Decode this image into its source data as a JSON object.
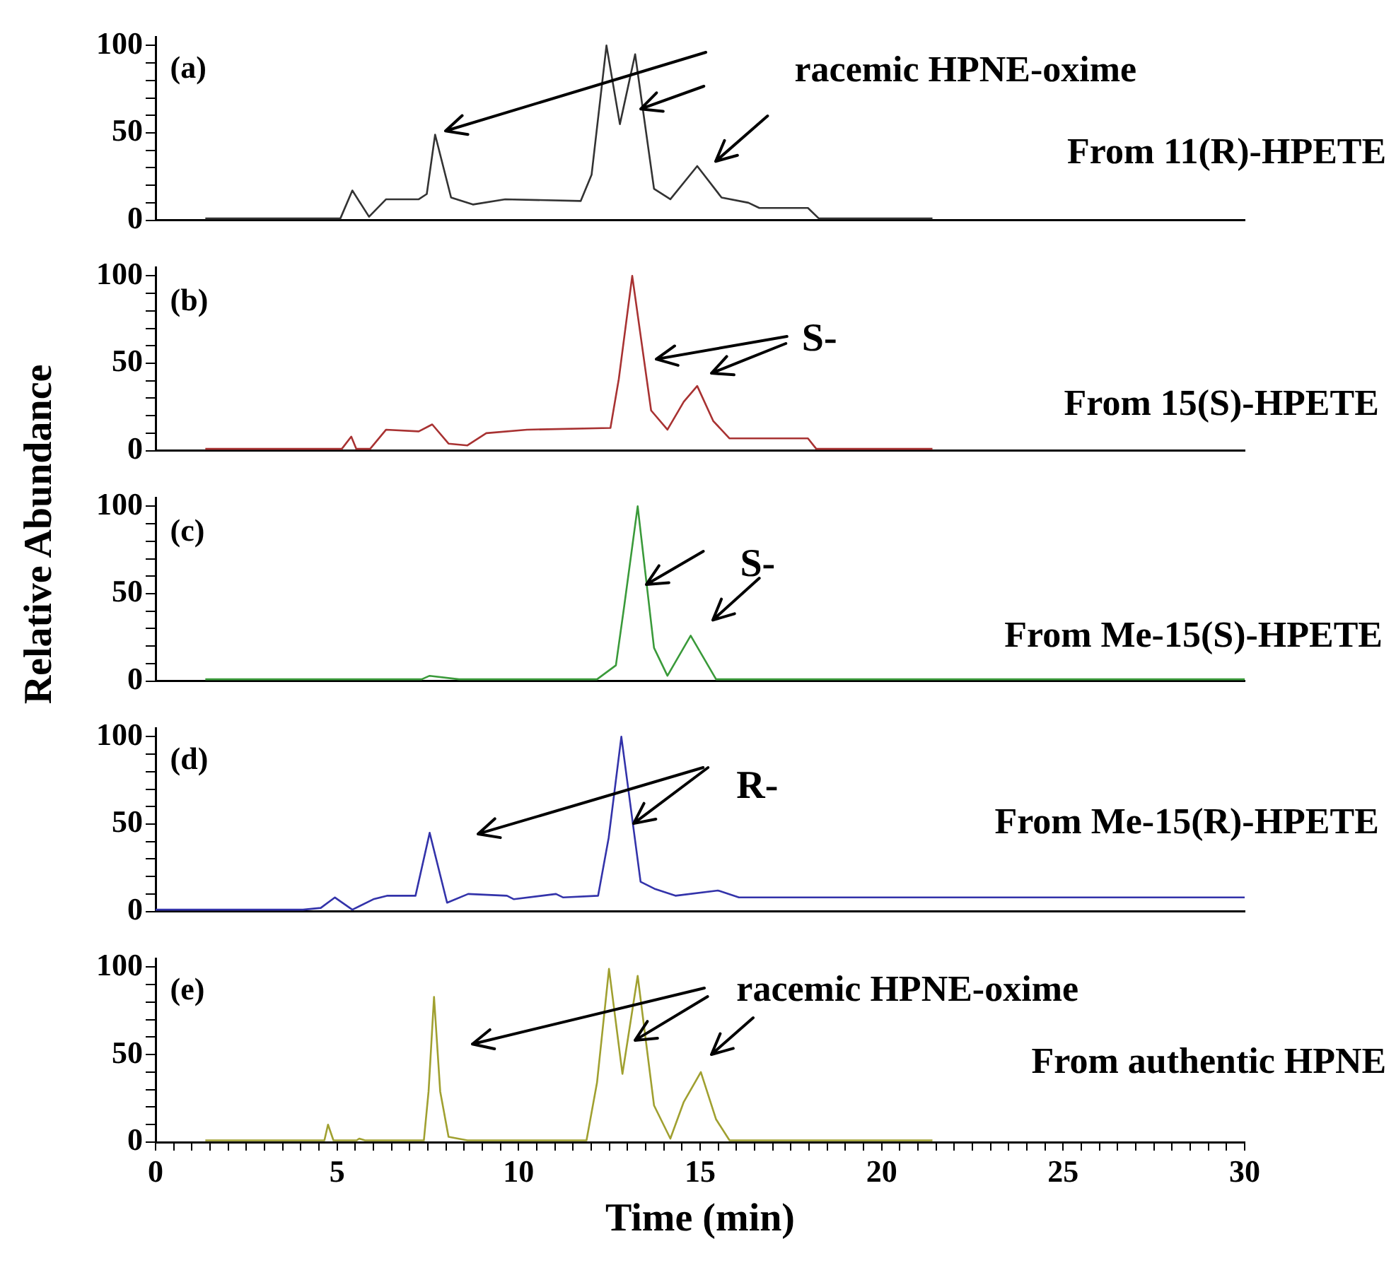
{
  "chart_data": [
    {
      "type": "line",
      "color": "#333333",
      "x": [
        1.37,
        5.09,
        5.42,
        5.88,
        6.35,
        7.25,
        7.47,
        7.7,
        8.14,
        8.74,
        9.63,
        11.71,
        12.01,
        12.42,
        12.79,
        13.21,
        13.73,
        14.18,
        14.92,
        15.59,
        16.33,
        16.63,
        17.97,
        18.27,
        21.4
      ],
      "values": [
        1,
        1,
        17,
        2,
        12,
        12,
        15,
        49,
        13,
        9,
        12,
        11,
        26,
        100,
        55,
        95,
        18,
        12,
        31,
        13,
        10,
        7,
        7,
        1,
        1
      ],
      "xlim": [
        0,
        30
      ],
      "ylim": [
        0,
        105
      ],
      "yticks": [
        0,
        {
          "value": 10,
          "label": null
        },
        {
          "value": 20,
          "label": null
        },
        {
          "value": 30,
          "label": null
        },
        {
          "value": 40,
          "label": null
        },
        50,
        {
          "value": 60,
          "label": null
        },
        {
          "value": 70,
          "label": null
        },
        {
          "value": 80,
          "label": null
        },
        {
          "value": 90,
          "label": null
        },
        100
      ],
      "tick_labels": "y",
      "annotations": [
        "(a)",
        "racemic HPNE-oxime",
        "From 11(R)-HPETE"
      ]
    },
    {
      "type": "line",
      "color": "#a83232",
      "x": [
        1.37,
        5.13,
        5.39,
        5.53,
        5.91,
        6.35,
        7.25,
        7.62,
        8.07,
        8.59,
        9.11,
        10.23,
        12.53,
        12.76,
        13.13,
        13.65,
        14.1,
        14.55,
        14.92,
        15.36,
        15.81,
        17.97,
        18.2,
        21.4
      ],
      "values": [
        1,
        1,
        8,
        1,
        1,
        12,
        11,
        15,
        4,
        3,
        10,
        12,
        13,
        41,
        100,
        23,
        12,
        28,
        37,
        17,
        7,
        7,
        1,
        1
      ],
      "xlim": [
        0,
        30
      ],
      "ylim": [
        0,
        105
      ],
      "yticks": [
        0,
        {
          "value": 10,
          "label": null
        },
        {
          "value": 20,
          "label": null
        },
        {
          "value": 30,
          "label": null
        },
        {
          "value": 40,
          "label": null
        },
        50,
        {
          "value": 60,
          "label": null
        },
        {
          "value": 70,
          "label": null
        },
        {
          "value": 80,
          "label": null
        },
        {
          "value": 90,
          "label": null
        },
        100
      ],
      "tick_labels": "y",
      "annotations": [
        "(b)",
        "S-",
        "From 15(S)-HPETE"
      ]
    },
    {
      "type": "line",
      "color": "#3a9a3a",
      "x": [
        1.37,
        7.33,
        7.55,
        8.36,
        8.59,
        12.16,
        12.68,
        12.91,
        13.28,
        13.73,
        14.1,
        14.74,
        15.44,
        15.59,
        30
      ],
      "values": [
        1,
        1,
        3,
        1,
        1,
        1,
        9,
        43,
        100,
        19,
        3,
        26,
        1,
        1,
        1
      ],
      "xlim": [
        0,
        30
      ],
      "ylim": [
        0,
        105
      ],
      "yticks": [
        0,
        {
          "value": 10,
          "label": null
        },
        {
          "value": 20,
          "label": null
        },
        {
          "value": 30,
          "label": null
        },
        {
          "value": 40,
          "label": null
        },
        50,
        {
          "value": 60,
          "label": null
        },
        {
          "value": 70,
          "label": null
        },
        {
          "value": 80,
          "label": null
        },
        {
          "value": 90,
          "label": null
        },
        100
      ],
      "tick_labels": "y",
      "ylabel": "Relative Abundance",
      "annotations": [
        "(c)",
        {
          "text": "S-",
          "x": 13.53,
          "y": 55
        },
        "From Me-15(S)-HPETE"
      ]
    },
    {
      "type": "line",
      "color": "#3333aa",
      "x": [
        0,
        4.06,
        4.55,
        4.94,
        5.42,
        6.0,
        6.39,
        7.16,
        7.55,
        8.03,
        8.61,
        9.68,
        9.87,
        11.03,
        11.23,
        12.19,
        12.48,
        12.83,
        13.36,
        13.74,
        14.32,
        15.49,
        16.07,
        30
      ],
      "values": [
        1,
        1,
        2,
        8,
        1,
        7,
        9,
        9,
        45,
        5,
        10,
        9,
        7,
        10,
        8,
        9,
        42,
        100,
        17,
        13,
        9,
        12,
        8,
        8
      ],
      "xlim": [
        0,
        30
      ],
      "ylim": [
        0,
        105
      ],
      "yticks": [
        0,
        {
          "value": 10,
          "label": null
        },
        {
          "value": 20,
          "label": null
        },
        {
          "value": 30,
          "label": null
        },
        {
          "value": 40,
          "label": null
        },
        50,
        {
          "value": 60,
          "label": null
        },
        {
          "value": 70,
          "label": null
        },
        {
          "value": 80,
          "label": null
        },
        {
          "value": 90,
          "label": null
        },
        100
      ],
      "tick_labels": "y",
      "annotations": [
        "(d)",
        {
          "text": "R-",
          "x": 13.15,
          "y": 50
        },
        "From Me-15(R)-HPETE"
      ]
    },
    {
      "type": "line",
      "color": "#a0a030",
      "x": [
        1.37,
        4.65,
        4.75,
        4.9,
        5.54,
        5.61,
        5.77,
        7.39,
        7.52,
        7.67,
        7.84,
        8.07,
        8.59,
        11.87,
        12.16,
        12.49,
        12.86,
        13.28,
        13.73,
        14.18,
        14.55,
        15.02,
        15.44,
        15.81,
        21.4
      ],
      "values": [
        1,
        1,
        10,
        1,
        1,
        2,
        1,
        1,
        29,
        83,
        29,
        3,
        1,
        1,
        34,
        99,
        39,
        95,
        21,
        2,
        23,
        40,
        13,
        1,
        1
      ],
      "xlim": [
        0,
        30
      ],
      "ylim": [
        0,
        105
      ],
      "yticks": [
        0,
        {
          "value": 10,
          "label": null
        },
        {
          "value": 20,
          "label": null
        },
        {
          "value": 30,
          "label": null
        },
        {
          "value": 40,
          "label": null
        },
        50,
        {
          "value": 60,
          "label": null
        },
        {
          "value": 70,
          "label": null
        },
        {
          "value": 80,
          "label": null
        },
        {
          "value": 90,
          "label": null
        },
        100
      ],
      "xticks": [
        0,
        {
          "value": 0.5,
          "label": null
        },
        {
          "value": 1,
          "label": null
        },
        {
          "value": 1.5,
          "label": null
        },
        {
          "value": 2,
          "label": null
        },
        {
          "value": 2.5,
          "label": null
        },
        {
          "value": 3,
          "label": null
        },
        {
          "value": 3.5,
          "label": null
        },
        {
          "value": 4,
          "label": null
        },
        {
          "value": 4.5,
          "label": null
        },
        5,
        {
          "value": 5.5,
          "label": null
        },
        {
          "value": 6,
          "label": null
        },
        {
          "value": 6.5,
          "label": null
        },
        {
          "value": 7,
          "label": null
        },
        {
          "value": 7.5,
          "label": null
        },
        {
          "value": 8,
          "label": null
        },
        {
          "value": 8.5,
          "label": null
        },
        {
          "value": 9,
          "label": null
        },
        {
          "value": 9.5,
          "label": null
        },
        10,
        {
          "value": 10.5,
          "label": null
        },
        {
          "value": 11,
          "label": null
        },
        {
          "value": 11.5,
          "label": null
        },
        {
          "value": 12,
          "label": null
        },
        {
          "value": 12.5,
          "label": null
        },
        {
          "value": 13,
          "label": null
        },
        {
          "value": 13.5,
          "label": null
        },
        {
          "value": 14,
          "label": null
        },
        {
          "value": 14.5,
          "label": null
        },
        15,
        {
          "value": 15.5,
          "label": null
        },
        {
          "value": 16,
          "label": null
        },
        {
          "value": 16.5,
          "label": null
        },
        {
          "value": 17,
          "label": null
        },
        {
          "value": 17.5,
          "label": null
        },
        {
          "value": 18,
          "label": null
        },
        {
          "value": 18.5,
          "label": null
        },
        {
          "value": 19,
          "label": null
        },
        {
          "value": 19.5,
          "label": null
        },
        20,
        {
          "value": 20.5,
          "label": null
        },
        {
          "value": 21,
          "label": null
        },
        {
          "value": 21.5,
          "label": null
        },
        {
          "value": 22,
          "label": null
        },
        {
          "value": 22.5,
          "label": null
        },
        {
          "value": 23,
          "label": null
        },
        {
          "value": 23.5,
          "label": null
        },
        {
          "value": 24,
          "label": null
        },
        {
          "value": 24.5,
          "label": null
        },
        25,
        {
          "value": 25.5,
          "label": null
        },
        {
          "value": 26,
          "label": null
        },
        {
          "value": 26.5,
          "label": null
        },
        {
          "value": 27,
          "label": null
        },
        {
          "value": 27.5,
          "label": null
        },
        {
          "value": 28,
          "label": null
        },
        {
          "value": 28.5,
          "label": null
        },
        {
          "value": 29,
          "label": null
        },
        {
          "value": 29.5,
          "label": null
        },
        30
      ],
      "xlabel": "Time (min)",
      "annotations": [
        "(e)",
        "racemic HPNE-oxime",
        "From authentic HPNE"
      ]
    }
  ]
}
